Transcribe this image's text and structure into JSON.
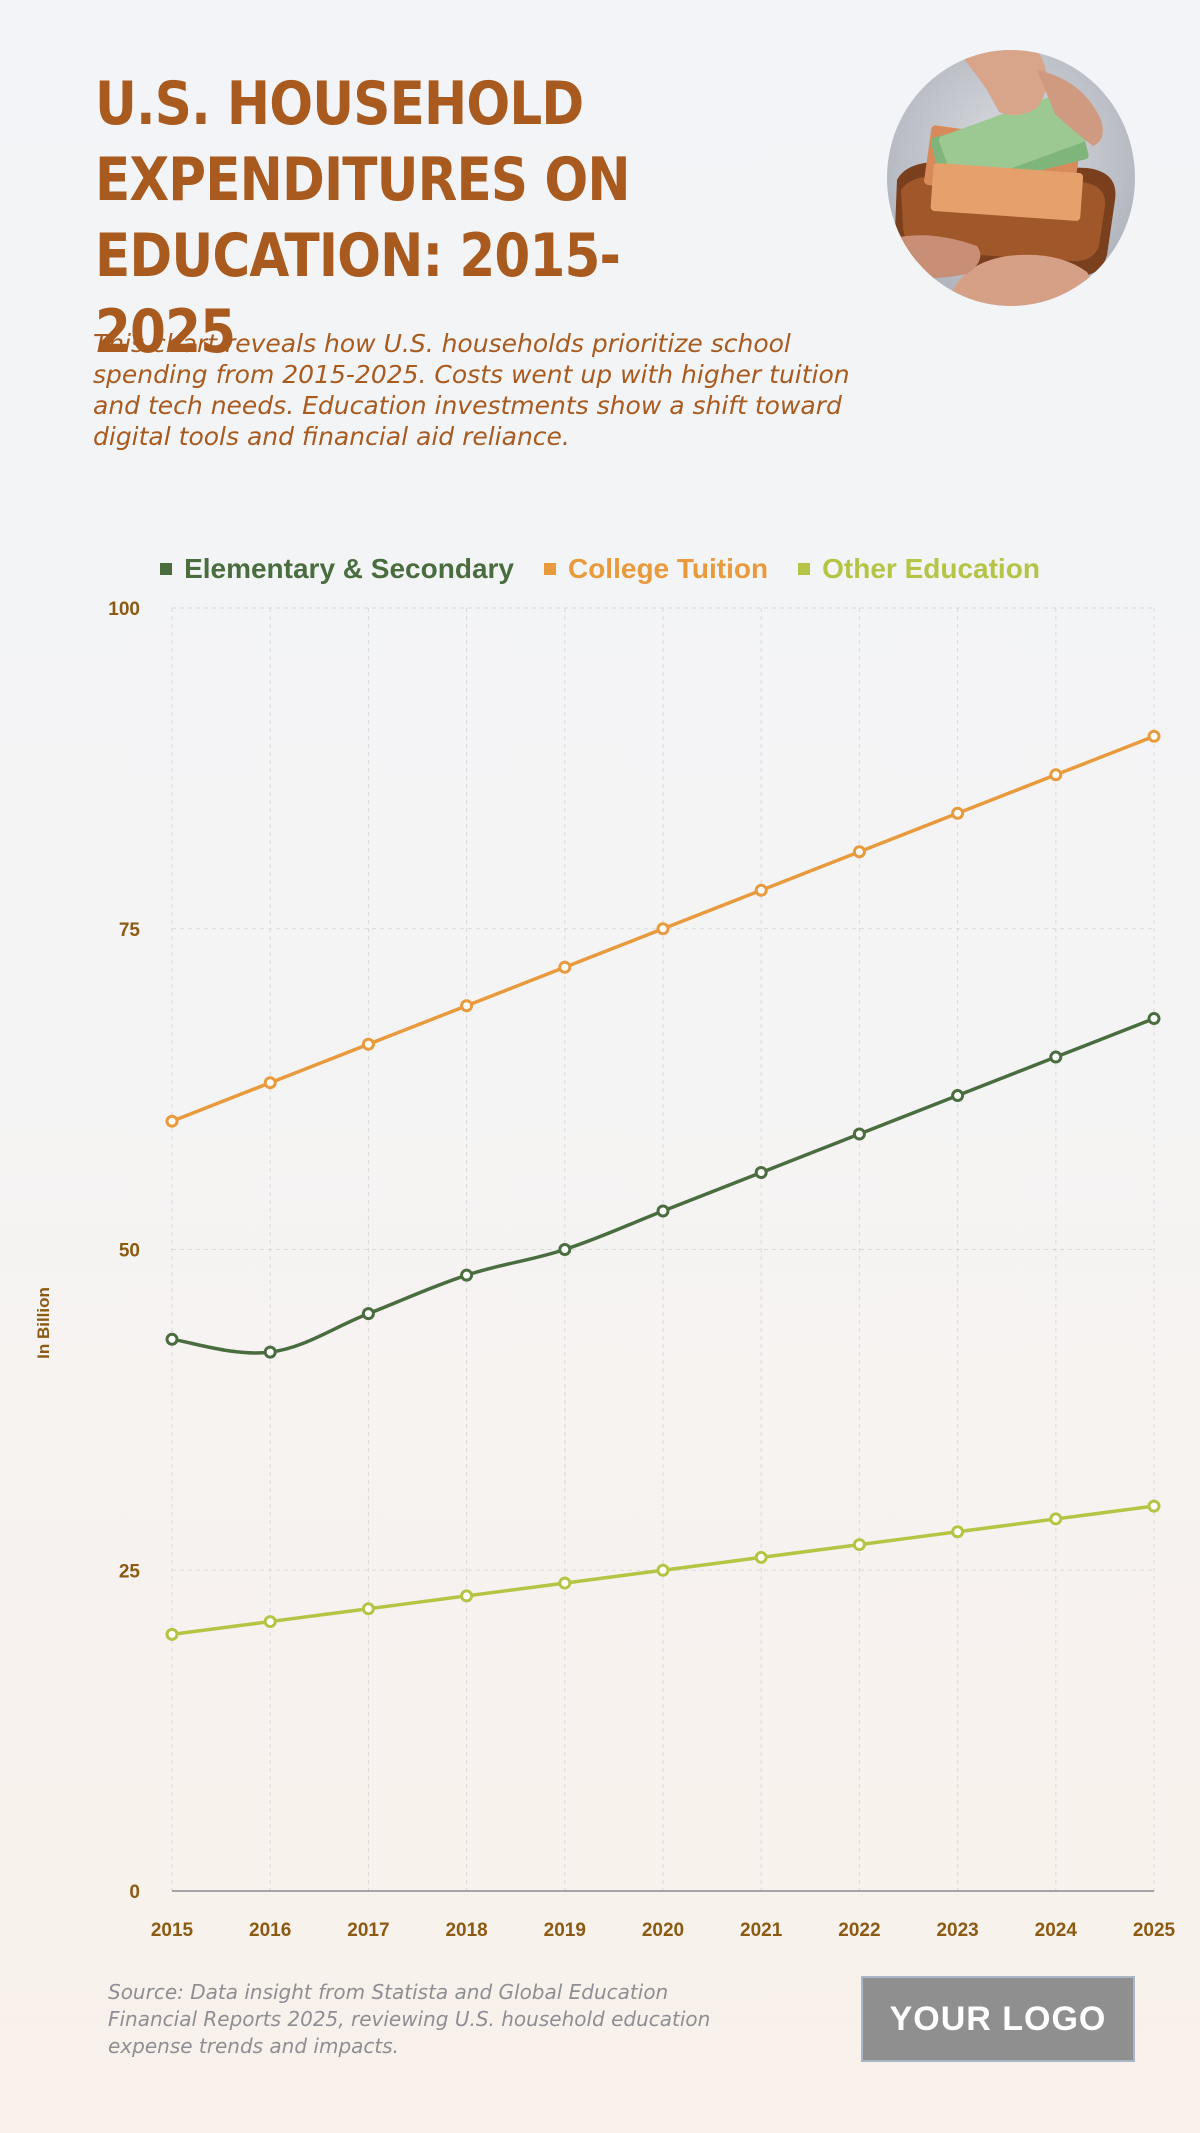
{
  "header": {
    "title": "U.S. HOUSEHOLD\nEXPENDITURES ON\nEDUCATION: 2015-2025",
    "subtitle": "This chart reveals how U.S. households prioritize school spending from 2015-2025. Costs went up with higher tuition and tech needs. Education investments show a shift toward digital tools and financial aid reliance."
  },
  "photo": {
    "icon": "wallet-with-cash-icon"
  },
  "footer": {
    "source": "Source: Data insight from Statista and Global Education Financial Reports 2025, reviewing U.S. household education expense trends and impacts.",
    "logo": "YOUR LOGO"
  },
  "chart_data": {
    "type": "line",
    "title": "U.S. HOUSEHOLD EXPENDITURES ON EDUCATION: 2015-2025",
    "xlabel": "",
    "ylabel": "In Billion",
    "x": [
      "2015",
      "2016",
      "2017",
      "2018",
      "2019",
      "2020",
      "2021",
      "2022",
      "2023",
      "2024",
      "2025"
    ],
    "ylim": [
      0,
      100
    ],
    "yticks": [
      0,
      25,
      50,
      75,
      100
    ],
    "grid": true,
    "legend_position": "top-center",
    "series": [
      {
        "name": "Elementary & Secondary",
        "color": "#4a6d3f",
        "values": [
          43,
          42,
          45,
          48,
          50,
          53,
          56,
          59,
          62,
          65,
          68
        ]
      },
      {
        "name": "College Tuition",
        "color": "#e89a3c",
        "values": [
          60,
          63,
          66,
          69,
          72,
          75,
          78,
          81,
          84,
          87,
          90
        ]
      },
      {
        "name": "Other Education",
        "color": "#b5c444",
        "values": [
          20,
          21,
          22,
          23,
          24,
          25,
          26,
          27,
          28,
          29,
          30
        ]
      }
    ]
  }
}
